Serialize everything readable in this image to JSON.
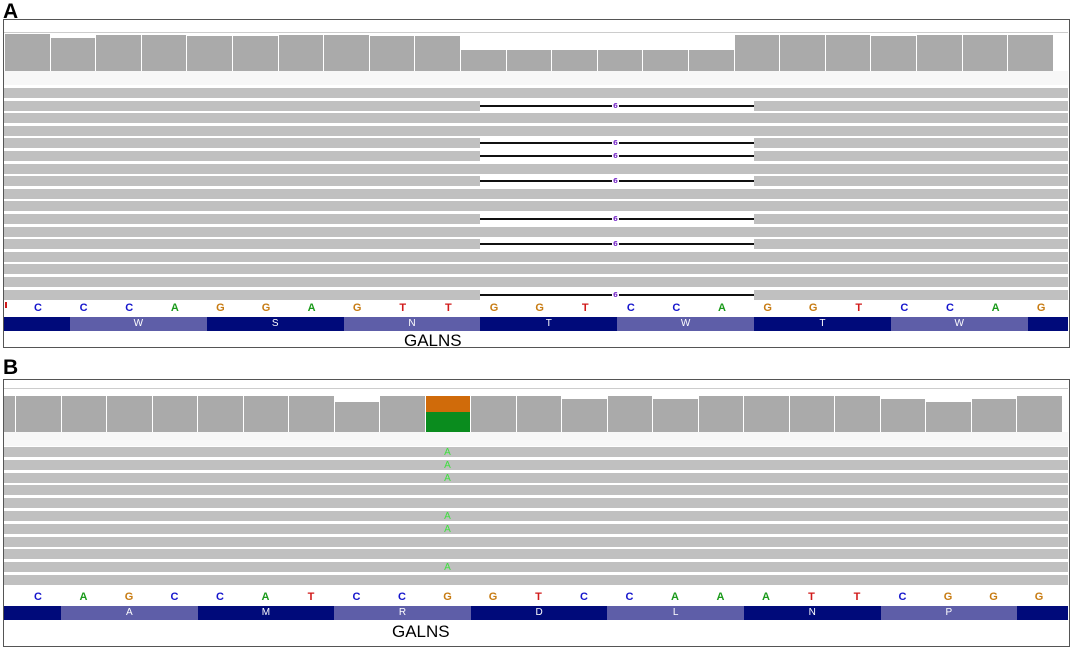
{
  "panels": [
    {
      "label": "A",
      "gene": "GALNS",
      "reference": [
        "C",
        "C",
        "C",
        "A",
        "G",
        "G",
        "A",
        "G",
        "T",
        "T",
        "G",
        "G",
        "T",
        "C",
        "C",
        "A",
        "G",
        "G",
        "T",
        "C",
        "C",
        "A",
        "G"
      ],
      "amino_acids": [
        "W",
        "S",
        "N",
        "T",
        "W",
        "T",
        "W"
      ],
      "deletion_label": "6",
      "deletion_rows": [
        1,
        4,
        5,
        7,
        10,
        12,
        16
      ],
      "read_rows": 17
    },
    {
      "label": "B",
      "gene": "GALNS",
      "reference": [
        "C",
        "A",
        "G",
        "C",
        "C",
        "A",
        "T",
        "C",
        "C",
        "G",
        "G",
        "T",
        "C",
        "C",
        "A",
        "A",
        "A",
        "T",
        "T",
        "C",
        "G",
        "G",
        "G"
      ],
      "amino_acids": [
        "A",
        "M",
        "R",
        "D",
        "L",
        "N",
        "P"
      ],
      "mismatch_base": "A",
      "mismatch_rows": [
        0,
        1,
        2,
        5,
        6,
        9
      ],
      "read_rows": 11,
      "variant_colors": {
        "top": "#d06b0a",
        "bottom": "#0a8c1e"
      }
    }
  ],
  "base_colors": {
    "A": "#1a9a1a",
    "C": "#1515cc",
    "G": "#c77b12",
    "T": "#d11a1a"
  },
  "track_colors": {
    "aa_dark": "#000a7a",
    "aa_light": "#5e5ea8"
  }
}
